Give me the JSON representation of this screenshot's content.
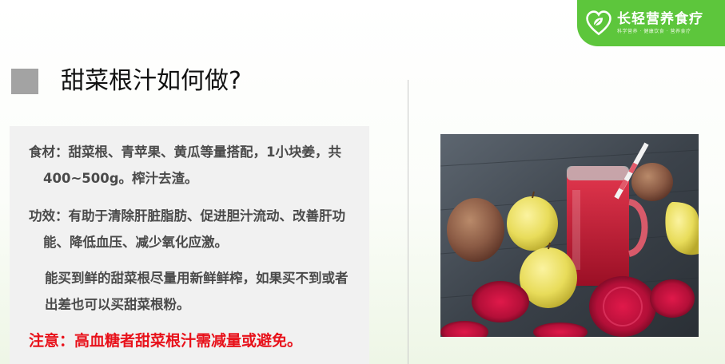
{
  "brand": {
    "name": "长轻营养食疗",
    "tagline": "科学营养 · 健康饮食 · 营养食疗",
    "logo_icon": "heart-leaf-icon",
    "color": "#5dc63c"
  },
  "heading": {
    "title": "甜菜根汁如何做?",
    "marker_color": "#a3a3a3"
  },
  "content": {
    "ingredients": "食材：甜菜根、青苹果、黄瓜等量搭配，1小块姜，共400~500g。榨汁去渣。",
    "benefits": "功效：有助于清除肝脏脂肪、促进胆汁流动、改善肝功能、降低血压、减少氧化应激。",
    "tip": "能买到鲜的甜菜根尽量用新鲜鲜榨，如果买不到或者出差也可以买甜菜根粉。",
    "warning": "注意：高血糖者甜菜根汁需减量或避免。",
    "warning_color": "#e8121b"
  },
  "photo": {
    "subject": "beetroot-juice-photo"
  }
}
